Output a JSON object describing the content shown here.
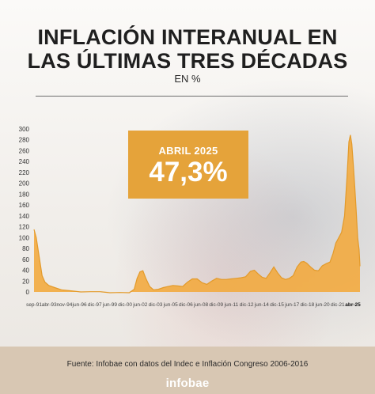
{
  "header": {
    "title_line1": "INFLACIÓN INTERANUAL EN",
    "title_line2": "LAS ÚLTIMAS TRES DÉCADAS",
    "subtitle": "EN %"
  },
  "callout": {
    "label": "ABRIL 2025",
    "value": "47,3%"
  },
  "footer": {
    "source": "Fuente: Infobae con datos del Indec e Inflación Congreso 2006-2016",
    "logo": "infobae"
  },
  "colors": {
    "fill": "#f2a93b",
    "line": "#e39a2a",
    "callout": "#e5a33a",
    "footer": "#d8c7b3"
  },
  "chart_data": {
    "type": "area",
    "title": "",
    "xlabel": "",
    "ylabel": "",
    "ylim": [
      0,
      300
    ],
    "yticks": [
      0,
      20,
      40,
      60,
      80,
      100,
      120,
      140,
      160,
      180,
      200,
      220,
      240,
      260,
      280,
      300
    ],
    "x_tick_labels": [
      "sep-91",
      "abr-93",
      "nov-94",
      "jun-96",
      "dic-97",
      "jun-99",
      "dic-00",
      "jun-02",
      "dic-03",
      "jun-05",
      "dic-06",
      "jun-08",
      "dic-09",
      "jun-11",
      "dic-12",
      "jun-14",
      "dic-15",
      "jun-17",
      "dic-18",
      "jun-20",
      "dic-21",
      "abr-25"
    ],
    "highlight_tick": "abr-25",
    "series": [
      {
        "values_by_year": [
          {
            "x": 1991.67,
            "y": 115
          },
          {
            "x": 1991.9,
            "y": 100
          },
          {
            "x": 1992.2,
            "y": 65
          },
          {
            "x": 1992.5,
            "y": 30
          },
          {
            "x": 1992.8,
            "y": 18
          },
          {
            "x": 1993.2,
            "y": 12
          },
          {
            "x": 1993.8,
            "y": 8
          },
          {
            "x": 1994.5,
            "y": 4
          },
          {
            "x": 1995.5,
            "y": 2
          },
          {
            "x": 1996.5,
            "y": 0
          },
          {
            "x": 1997.5,
            "y": 0.5
          },
          {
            "x": 1998.5,
            "y": 0.5
          },
          {
            "x": 1999.5,
            "y": -1.5
          },
          {
            "x": 2000.5,
            "y": -1
          },
          {
            "x": 2001.5,
            "y": -1.5
          },
          {
            "x": 2002.0,
            "y": 5
          },
          {
            "x": 2002.3,
            "y": 25
          },
          {
            "x": 2002.6,
            "y": 37
          },
          {
            "x": 2002.9,
            "y": 39
          },
          {
            "x": 2003.2,
            "y": 25
          },
          {
            "x": 2003.6,
            "y": 10
          },
          {
            "x": 2004.0,
            "y": 4
          },
          {
            "x": 2004.5,
            "y": 5
          },
          {
            "x": 2005.0,
            "y": 8
          },
          {
            "x": 2005.5,
            "y": 10
          },
          {
            "x": 2006.0,
            "y": 12
          },
          {
            "x": 2006.5,
            "y": 11
          },
          {
            "x": 2007.0,
            "y": 10
          },
          {
            "x": 2007.5,
            "y": 18
          },
          {
            "x": 2008.0,
            "y": 24
          },
          {
            "x": 2008.5,
            "y": 24
          },
          {
            "x": 2009.0,
            "y": 17
          },
          {
            "x": 2009.5,
            "y": 14
          },
          {
            "x": 2010.0,
            "y": 20
          },
          {
            "x": 2010.5,
            "y": 25
          },
          {
            "x": 2011.0,
            "y": 23
          },
          {
            "x": 2011.5,
            "y": 23
          },
          {
            "x": 2012.0,
            "y": 24
          },
          {
            "x": 2012.5,
            "y": 25
          },
          {
            "x": 2013.0,
            "y": 26
          },
          {
            "x": 2013.5,
            "y": 28
          },
          {
            "x": 2014.0,
            "y": 38
          },
          {
            "x": 2014.4,
            "y": 40
          },
          {
            "x": 2014.8,
            "y": 33
          },
          {
            "x": 2015.2,
            "y": 27
          },
          {
            "x": 2015.6,
            "y": 25
          },
          {
            "x": 2016.0,
            "y": 35
          },
          {
            "x": 2016.4,
            "y": 46
          },
          {
            "x": 2016.8,
            "y": 35
          },
          {
            "x": 2017.2,
            "y": 26
          },
          {
            "x": 2017.6,
            "y": 23
          },
          {
            "x": 2018.0,
            "y": 25
          },
          {
            "x": 2018.4,
            "y": 30
          },
          {
            "x": 2018.8,
            "y": 46
          },
          {
            "x": 2019.2,
            "y": 55
          },
          {
            "x": 2019.5,
            "y": 56
          },
          {
            "x": 2019.8,
            "y": 53
          },
          {
            "x": 2020.2,
            "y": 46
          },
          {
            "x": 2020.6,
            "y": 40
          },
          {
            "x": 2021.0,
            "y": 39
          },
          {
            "x": 2021.4,
            "y": 48
          },
          {
            "x": 2021.8,
            "y": 52
          },
          {
            "x": 2022.2,
            "y": 55
          },
          {
            "x": 2022.5,
            "y": 70
          },
          {
            "x": 2022.8,
            "y": 90
          },
          {
            "x": 2023.1,
            "y": 100
          },
          {
            "x": 2023.4,
            "y": 110
          },
          {
            "x": 2023.7,
            "y": 140
          },
          {
            "x": 2023.95,
            "y": 211
          },
          {
            "x": 2024.15,
            "y": 276
          },
          {
            "x": 2024.3,
            "y": 289
          },
          {
            "x": 2024.45,
            "y": 272
          },
          {
            "x": 2024.6,
            "y": 236
          },
          {
            "x": 2024.75,
            "y": 194
          },
          {
            "x": 2024.9,
            "y": 150
          },
          {
            "x": 2025.05,
            "y": 100
          },
          {
            "x": 2025.2,
            "y": 78
          },
          {
            "x": 2025.29,
            "y": 47.3
          }
        ]
      }
    ]
  }
}
